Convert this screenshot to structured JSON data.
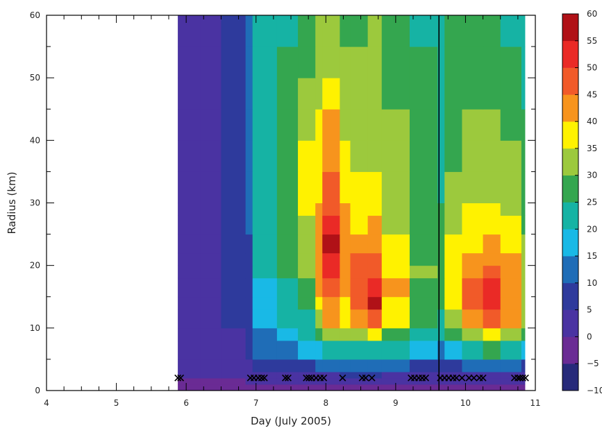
{
  "chart_data": {
    "type": "heatmap",
    "xlabel": "Day (July 2005)",
    "ylabel": "Radius (km)",
    "xlim": [
      4,
      11
    ],
    "ylim": [
      0,
      60
    ],
    "x_ticks": [
      "4",
      "5",
      "6",
      "7",
      "8",
      "9",
      "10",
      "11"
    ],
    "y_ticks": [
      "0",
      "10",
      "20",
      "30",
      "40",
      "50",
      "60"
    ],
    "colorbar": {
      "ticks": [
        "60",
        "55",
        "50",
        "45",
        "40",
        "35",
        "30",
        "25",
        "20",
        "15",
        "10",
        "5",
        "0",
        "−5",
        "−10"
      ],
      "levels": [
        -10,
        -5,
        0,
        5,
        10,
        15,
        20,
        25,
        30,
        35,
        40,
        45,
        50,
        55,
        60
      ],
      "colors": [
        "#272a7a",
        "#6a2b94",
        "#4a33a2",
        "#2e3a9c",
        "#1f6db7",
        "#19b9e6",
        "#16b3a4",
        "#34a64f",
        "#9cc93d",
        "#fff200",
        "#f7941d",
        "#f15a29",
        "#ea2a26",
        "#b01117"
      ]
    },
    "data_end_x": 10.85,
    "vertical_line_x": 9.62,
    "marker_radius": 2,
    "marker_days": [
      5.88,
      5.92,
      6.92,
      6.97,
      7.03,
      7.08,
      7.12,
      7.42,
      7.46,
      7.72,
      7.76,
      7.8,
      7.86,
      7.92,
      7.97,
      8.24,
      8.52,
      8.57,
      8.66,
      9.22,
      9.27,
      9.33,
      9.38,
      9.43,
      9.64,
      9.7,
      9.76,
      9.82,
      9.87,
      9.95,
      10.05,
      10.12,
      10.2,
      10.25,
      10.7,
      10.75,
      10.78,
      10.82,
      10.86
    ],
    "marker_symbol": "✕",
    "field": {
      "x": [
        5.88,
        6.2,
        6.5,
        6.85,
        6.95,
        7.3,
        7.6,
        7.85,
        7.95,
        8.2,
        8.35,
        8.6,
        8.8,
        9.2,
        9.6,
        9.7,
        9.95,
        10.25,
        10.5,
        10.8
      ],
      "y": [
        0,
        1,
        2,
        3,
        5,
        8,
        10,
        13,
        15,
        18,
        20,
        22,
        25,
        28,
        30,
        35,
        40,
        45,
        50,
        55,
        60
      ],
      "z": [
        [
          -2,
          -2,
          -2,
          -2,
          -1,
          -1,
          -1,
          -1,
          -1,
          -1,
          -1,
          -1,
          -1,
          -1,
          -1,
          -1,
          -1,
          -1,
          -1,
          -1
        ],
        [
          -1,
          -1,
          -1,
          -1,
          0,
          0,
          0,
          0,
          0,
          0,
          0,
          0,
          0,
          0,
          0,
          0,
          0,
          0,
          0,
          0
        ],
        [
          0,
          0,
          0,
          1,
          1,
          2,
          2,
          3,
          3,
          3,
          3,
          3,
          2,
          2,
          2,
          2,
          2,
          2,
          2,
          1
        ],
        [
          0,
          1,
          1,
          2,
          3,
          4,
          5,
          6,
          6,
          7,
          7,
          7,
          6,
          5,
          5,
          5,
          6,
          6,
          6,
          4
        ],
        [
          1,
          2,
          3,
          4,
          8,
          10,
          12,
          14,
          16,
          16,
          17,
          15,
          14,
          12,
          11,
          12,
          16,
          17,
          15,
          11
        ],
        [
          2,
          3,
          4,
          6,
          12,
          15,
          18,
          24,
          30,
          28,
          30,
          32,
          26,
          21,
          18,
          23,
          30,
          34,
          30,
          22
        ],
        [
          2,
          3,
          5,
          7,
          16,
          19,
          22,
          32,
          38,
          33,
          36,
          40,
          33,
          25,
          22,
          29,
          38,
          42,
          38,
          28
        ],
        [
          2,
          3,
          5,
          8,
          18,
          22,
          26,
          37,
          42,
          38,
          44,
          55,
          38,
          28,
          25,
          34,
          45,
          50,
          44,
          32
        ],
        [
          2,
          3,
          5,
          8,
          19,
          24,
          28,
          39,
          45,
          41,
          46,
          56,
          40,
          29,
          26,
          36,
          46,
          52,
          45,
          33
        ],
        [
          2,
          3,
          5,
          9,
          20,
          25,
          31,
          41,
          48,
          44,
          47,
          50,
          40,
          30,
          27,
          37,
          44,
          48,
          43,
          33
        ],
        [
          2,
          3,
          5,
          9,
          21,
          26,
          32,
          42,
          52,
          45,
          46,
          47,
          38,
          30,
          27,
          37,
          43,
          44,
          41,
          32
        ],
        [
          2,
          3,
          5,
          9,
          21,
          27,
          33,
          42,
          54,
          44,
          44,
          45,
          37,
          29,
          26,
          36,
          41,
          42,
          39,
          31
        ],
        [
          3,
          4,
          6,
          10,
          22,
          27,
          34,
          41,
          56,
          43,
          41,
          42,
          35,
          29,
          26,
          34,
          38,
          39,
          37,
          30
        ],
        [
          3,
          4,
          6,
          10,
          22,
          27,
          35,
          40,
          50,
          41,
          38,
          39,
          34,
          29,
          25,
          33,
          36,
          37,
          35,
          29
        ],
        [
          3,
          4,
          6,
          10,
          23,
          28,
          36,
          40,
          48,
          40,
          36,
          37,
          33,
          28,
          25,
          32,
          34,
          35,
          33,
          28
        ],
        [
          3,
          4,
          7,
          11,
          23,
          28,
          36,
          39,
          44,
          37,
          34,
          35,
          32,
          28,
          24,
          30,
          32,
          33,
          31,
          27
        ],
        [
          3,
          4,
          7,
          11,
          22,
          27,
          34,
          37,
          42,
          35,
          33,
          34,
          31,
          27,
          23,
          29,
          31,
          31,
          29,
          26
        ],
        [
          3,
          4,
          7,
          11,
          22,
          26,
          31,
          35,
          38,
          33,
          32,
          33,
          30,
          26,
          22,
          28,
          30,
          30,
          28,
          24
        ],
        [
          3,
          4,
          7,
          11,
          21,
          25,
          29,
          33,
          35,
          31,
          31,
          32,
          29,
          25,
          22,
          27,
          29,
          29,
          26,
          23
        ],
        [
          3,
          4,
          7,
          12,
          21,
          25,
          28,
          32,
          33,
          30,
          30,
          31,
          28,
          25,
          21,
          26,
          28,
          27,
          24,
          22
        ],
        [
          3,
          4,
          7,
          12,
          20,
          24,
          27,
          31,
          32,
          29,
          29,
          30,
          27,
          24,
          21,
          25,
          27,
          26,
          23,
          21
        ]
      ]
    }
  }
}
